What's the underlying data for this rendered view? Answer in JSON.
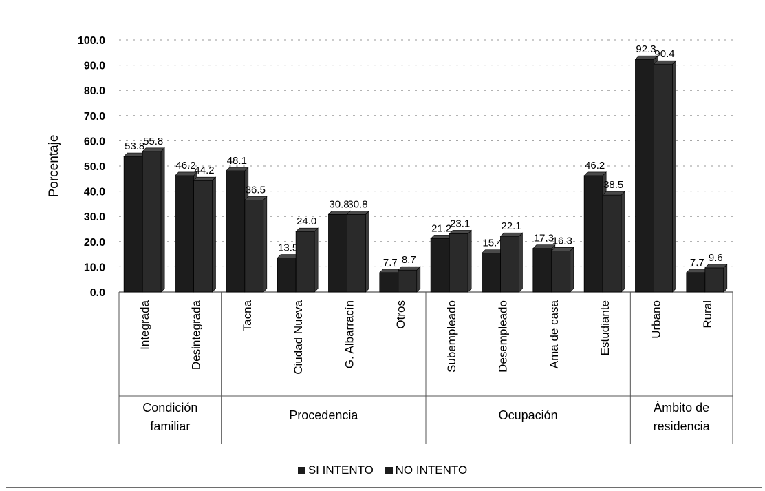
{
  "chart_data": {
    "type": "bar",
    "ylabel": "Porcentaje",
    "xlabel": "",
    "ylim": [
      0,
      100
    ],
    "yticks": [
      "0.0",
      "10.0",
      "20.0",
      "30.0",
      "40.0",
      "50.0",
      "60.0",
      "70.0",
      "80.0",
      "90.0",
      "100.0"
    ],
    "categories": [
      "Integrada",
      "Desintegrada",
      "Tacna",
      "Ciudad Nueva",
      "G. Albarracín",
      "Otros",
      "Subempleado",
      "Desempleado",
      "Ama de casa",
      "Estudiante",
      "Urbano",
      "Rural"
    ],
    "groups": [
      {
        "label": [
          "Condición",
          "familiar"
        ],
        "start": 0,
        "end": 1
      },
      {
        "label": [
          "Procedencia"
        ],
        "start": 2,
        "end": 5
      },
      {
        "label": [
          "Ocupación"
        ],
        "start": 6,
        "end": 9
      },
      {
        "label": [
          "Ámbito de",
          "residencia"
        ],
        "start": 10,
        "end": 11
      }
    ],
    "series": [
      {
        "name": "SI INTENTO",
        "values": [
          53.8,
          46.2,
          48.1,
          13.5,
          30.8,
          7.7,
          21.2,
          15.4,
          17.3,
          46.2,
          92.3,
          7.7
        ],
        "labels": [
          "53.8",
          "46.2",
          "48.1",
          "13.5",
          "30.8",
          "7.7",
          "21.2",
          "15.4",
          "17.3",
          "46.2",
          "92.3",
          "7.7"
        ]
      },
      {
        "name": "NO INTENTO",
        "values": [
          55.8,
          44.2,
          36.5,
          24.0,
          30.8,
          8.7,
          23.1,
          22.1,
          16.3,
          38.5,
          90.4,
          9.6
        ],
        "labels": [
          "55.8",
          "44.2",
          "36.5",
          "24.0",
          "30.8",
          "8.7",
          "23.1",
          "22.1",
          "16.3",
          "38.5",
          "90.4",
          "9.6"
        ]
      }
    ],
    "legend_position": "bottom",
    "grid": true,
    "colors": {
      "si": "#1c1c1c",
      "no": "#2a2a2a",
      "grid": "#9a9a9a",
      "axis": "#555555"
    }
  }
}
